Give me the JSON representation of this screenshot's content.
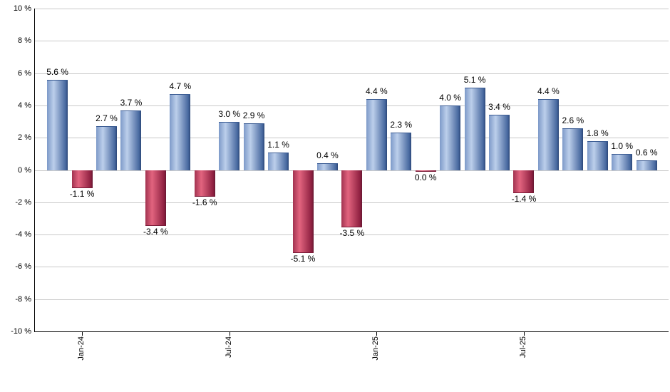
{
  "chart_data": {
    "type": "bar",
    "title": "",
    "xlabel": "",
    "ylabel": "",
    "unit": "%",
    "label_suffix": " %",
    "grid": true,
    "ylim": [
      -10,
      10
    ],
    "y_step": 2,
    "y_tick_labels": [
      "10 %",
      "8 %",
      "6 %",
      "4 %",
      "2 %",
      "0 %",
      "-2 %",
      "-4 %",
      "-6 %",
      "-8 %",
      "-10 %"
    ],
    "x_tick_labels": [
      {
        "bar_index": 1,
        "label": "Jan-24"
      },
      {
        "bar_index": 7,
        "label": "Jul-24"
      },
      {
        "bar_index": 13,
        "label": "Jan-25"
      },
      {
        "bar_index": 19,
        "label": "Jul-25"
      }
    ],
    "values": [
      5.6,
      -1.1,
      2.7,
      3.7,
      -3.4,
      4.7,
      -1.6,
      3.0,
      2.9,
      1.1,
      -5.1,
      0.4,
      -3.5,
      4.4,
      2.3,
      0.0,
      4.0,
      5.1,
      3.4,
      -1.4,
      4.4,
      2.6,
      1.8,
      1.0,
      0.6
    ],
    "value_labels": [
      "5.6 %",
      "-1.1 %",
      "2.7 %",
      "3.7 %",
      "-3.4 %",
      "4.7 %",
      "-1.6 %",
      "3.0 %",
      "2.9 %",
      "1.1 %",
      "-5.1 %",
      "0.4 %",
      "-3.5 %",
      "4.4 %",
      "2.3 %",
      "0.0 %",
      "4.0 %",
      "5.1 %",
      "3.4 %",
      "-1.4 %",
      "4.4 %",
      "2.6 %",
      "1.8 %",
      "1.0 %",
      "0.6 %"
    ],
    "colors": {
      "positive_mid": "#7d99c8",
      "positive_light": "#bccfeb",
      "positive_dark": "#47689f",
      "positive_edge": "#2b4677",
      "positive_cap": "#3b5c93",
      "negative_mid": "#a23350",
      "negative_light": "#e2647f",
      "negative_dark": "#8e2040",
      "negative_edge": "#661731",
      "negative_cap": "#7a1b38",
      "grid": "#c9c9c9",
      "axis": "#000000",
      "text": "#000000",
      "background": "#ffffff"
    },
    "legend": null
  }
}
